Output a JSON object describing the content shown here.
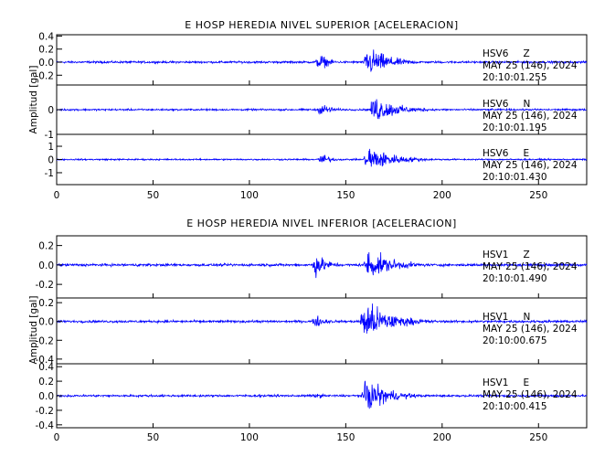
{
  "chart_data": [
    {
      "type": "line",
      "title": "E HOSP HEREDIA NIVEL SUPERIOR [ACELERACION]",
      "ylabel": "Amplitud [gal]",
      "xlim": [
        0,
        275
      ],
      "x_ticks": [
        "0",
        "50",
        "100",
        "150",
        "200",
        "250"
      ],
      "line_color": "#0000ff",
      "panels": [
        {
          "station": "HSV6",
          "component": "Z",
          "date": "MAY 25 (146), 2024",
          "time": "20:10:01.255",
          "ylim": [
            -0.35,
            0.42
          ],
          "y_ticks": [
            "0.4",
            "0.2",
            "0.0",
            "-0.2"
          ],
          "noise": 0.022,
          "events": [
            {
              "t": 135,
              "peak": 0.27,
              "end": 150
            },
            {
              "t": 160,
              "peak": 0.4,
              "end": 195
            }
          ]
        },
        {
          "station": "HSV6",
          "component": "N",
          "date": "MAY 25 (146), 2024",
          "time": "20:10:01.195",
          "ylim": [
            -1.0,
            1.0
          ],
          "y_ticks": [
            "0",
            "-1"
          ],
          "noise": 0.05,
          "events": [
            {
              "t": 136,
              "peak": 0.55,
              "end": 152
            },
            {
              "t": 163,
              "peak": 0.95,
              "end": 200
            }
          ]
        },
        {
          "station": "HSV6",
          "component": "E",
          "date": "MAY 25 (146), 2024",
          "time": "20:10:01.430",
          "ylim": [
            -1.9,
            1.9
          ],
          "y_ticks": [
            "1",
            "0",
            "-1"
          ],
          "noise": 0.08,
          "events": [
            {
              "t": 136,
              "peak": 0.9,
              "end": 152
            },
            {
              "t": 160,
              "peak": 1.75,
              "end": 200
            }
          ]
        }
      ]
    },
    {
      "type": "line",
      "title": "E HOSP HEREDIA NIVEL INFERIOR [ACELERACION]",
      "ylabel": "Amplitud [gal]",
      "xlim": [
        0,
        275
      ],
      "x_ticks": [
        "0",
        "50",
        "100",
        "150",
        "200",
        "250"
      ],
      "line_color": "#0000ff",
      "panels": [
        {
          "station": "HSV1",
          "component": "Z",
          "date": "MAY 25 (146), 2024",
          "time": "20:10:01.490",
          "ylim": [
            -0.34,
            0.3
          ],
          "y_ticks": [
            "0.2",
            "0.0",
            "-0.2"
          ],
          "noise": 0.018,
          "events": [
            {
              "t": 133,
              "peak": 0.24,
              "end": 152
            },
            {
              "t": 160,
              "peak": 0.26,
              "end": 200
            }
          ]
        },
        {
          "station": "HSV1",
          "component": "N",
          "date": "MAY 25 (146), 2024",
          "time": "20:10:00.675",
          "ylim": [
            -0.45,
            0.25
          ],
          "y_ticks": [
            "0.2",
            "0.0",
            "-0.2",
            "-0.4"
          ],
          "noise": 0.018,
          "events": [
            {
              "t": 133,
              "peak": 0.12,
              "end": 152
            },
            {
              "t": 158,
              "peak": 0.38,
              "end": 200
            }
          ]
        },
        {
          "station": "HSV1",
          "component": "E",
          "date": "MAY 25 (146), 2024",
          "time": "20:10:00.415",
          "ylim": [
            -0.44,
            0.44
          ],
          "y_ticks": [
            "0.4",
            "0.2",
            "0.0",
            "-0.2",
            "-0.4"
          ],
          "noise": 0.02,
          "events": [
            {
              "t": 133,
              "peak": 0.08,
              "end": 150
            },
            {
              "t": 159,
              "peak": 0.4,
              "end": 195
            }
          ]
        }
      ]
    }
  ]
}
